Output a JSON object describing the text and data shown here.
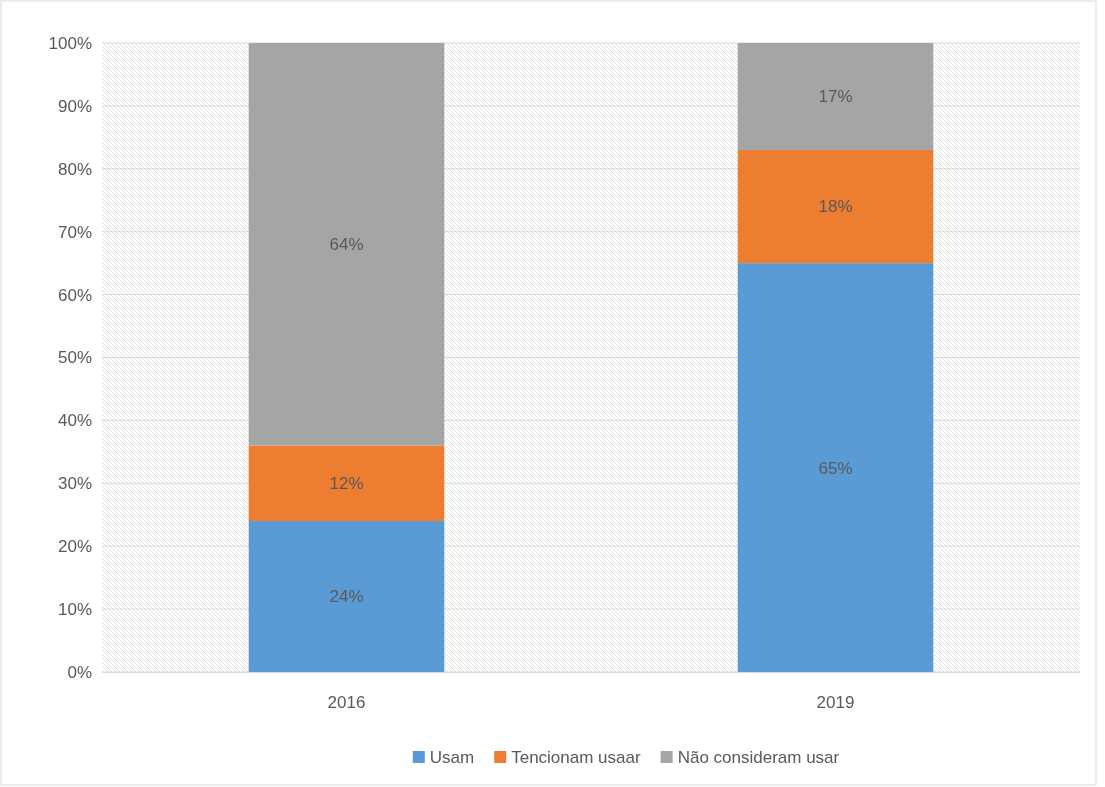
{
  "chart_data": {
    "type": "bar",
    "stacked": true,
    "categories": [
      "2016",
      "2019"
    ],
    "series": [
      {
        "name": "Usam",
        "color": "#5b9bd5",
        "values": [
          24,
          65
        ],
        "value_labels": [
          "24%",
          "65%"
        ]
      },
      {
        "name": "Tencionam usaar",
        "color": "#ed7d31",
        "values": [
          12,
          18
        ],
        "value_labels": [
          "12%",
          "18%"
        ]
      },
      {
        "name": "Não consideram usar",
        "color": "#a5a5a5",
        "values": [
          64,
          17
        ],
        "value_labels": [
          "64%",
          "17%"
        ]
      }
    ],
    "ylim": [
      0,
      100
    ],
    "yticks": [
      {
        "value": 0,
        "label": "0%"
      },
      {
        "value": 10,
        "label": "10%"
      },
      {
        "value": 20,
        "label": "20%"
      },
      {
        "value": 30,
        "label": "30%"
      },
      {
        "value": 40,
        "label": "40%"
      },
      {
        "value": 50,
        "label": "50%"
      },
      {
        "value": 60,
        "label": "60%"
      },
      {
        "value": 70,
        "label": "70%"
      },
      {
        "value": 80,
        "label": "80%"
      },
      {
        "value": 90,
        "label": "90%"
      },
      {
        "value": 100,
        "label": "100%"
      }
    ],
    "grid": "y",
    "legend": "bottom"
  }
}
